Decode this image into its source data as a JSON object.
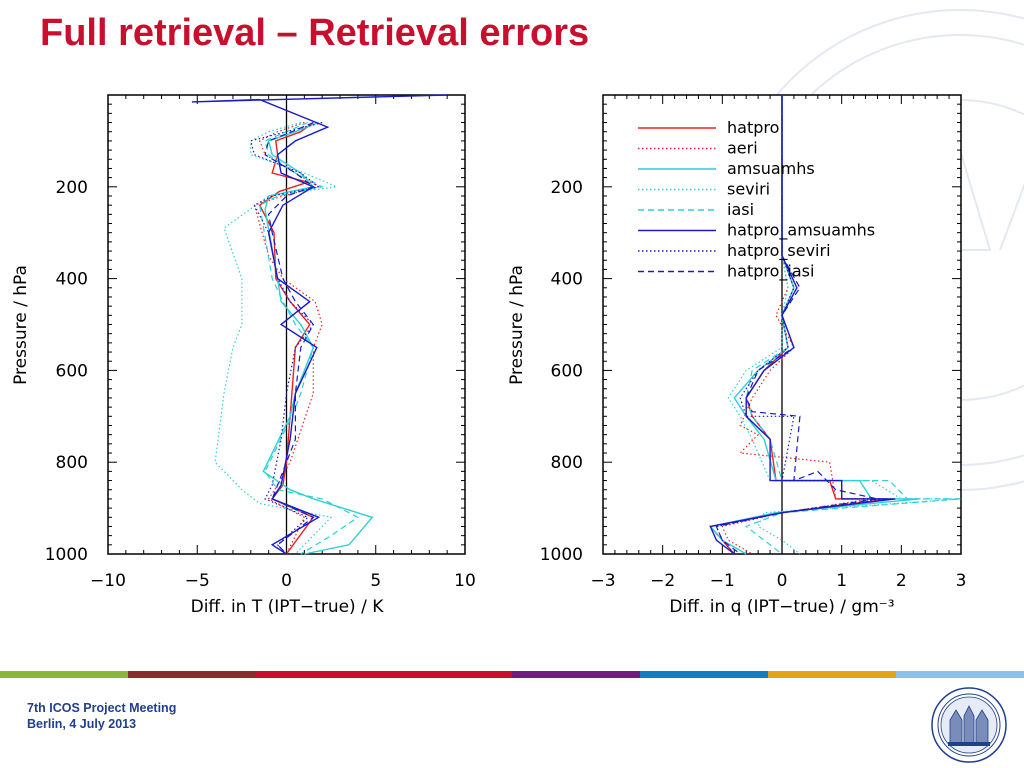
{
  "slide": {
    "title": "Full retrieval – Retrieval errors",
    "footer_line1": "7th ICOS Project Meeting",
    "footer_line2": "Berlin, 4 July 2013",
    "title_color": "#c8102e",
    "footer_color": "#1f3f8f",
    "color_bar": [
      "#8cb83a",
      "#8b2d2a",
      "#c8102e",
      "#c8102e",
      "#6d1f7a",
      "#0e7fc4",
      "#e5a31c",
      "#8fc1e6"
    ],
    "seal_icon": "university-seal-icon",
    "watermark_icon": "university-seal-watermark-icon"
  },
  "legend": [
    {
      "label": "hatpro",
      "color": "#e8231f",
      "dash": "solid"
    },
    {
      "label": "aeri",
      "color": "#e8231f",
      "dash": "dotted"
    },
    {
      "label": "amsuamhs",
      "color": "#2ecfd6",
      "dash": "solid"
    },
    {
      "label": "seviri",
      "color": "#2ecfd6",
      "dash": "dotted"
    },
    {
      "label": "iasi",
      "color": "#2ecfd6",
      "dash": "dashed"
    },
    {
      "label": "hatpro_amsuamhs",
      "color": "#1a1ac8",
      "dash": "solid"
    },
    {
      "label": "hatpro_seviri",
      "color": "#1a1ac8",
      "dash": "dotted"
    },
    {
      "label": "hatpro_iasi",
      "color": "#1a1ac8",
      "dash": "dashed"
    }
  ],
  "chart_data": [
    {
      "type": "line",
      "xlabel": "Diff. in T (IPT−true) / K",
      "ylabel": "Pressure / hPa",
      "xlim": [
        -10,
        10
      ],
      "ylim": [
        1000,
        0
      ],
      "xticks": [
        -10,
        -5,
        0,
        5,
        10
      ],
      "xtick_labels": [
        "−10",
        "−5",
        "0",
        "5",
        "10"
      ],
      "yticks": [
        200,
        400,
        600,
        800,
        1000
      ],
      "ytick_labels": [
        "200",
        "400",
        "600",
        "800",
        "1000"
      ],
      "legend": "none",
      "series": [
        {
          "name": "hatpro",
          "x": [
            1.5,
            0.8,
            -0.6,
            -0.5,
            -0.8,
            1.2,
            -0.4,
            -1.5,
            -0.7,
            -0.6,
            0.2,
            1.3,
            0.5,
            0.3,
            0.0,
            -0.2,
            -0.8,
            1.5,
            0.0
          ],
          "y": [
            60,
            80,
            100,
            130,
            170,
            190,
            210,
            240,
            300,
            400,
            450,
            500,
            550,
            650,
            800,
            850,
            880,
            920,
            1000
          ]
        },
        {
          "name": "aeri",
          "x": [
            1.0,
            -0.5,
            -1.5,
            -1.2,
            0.5,
            1.8,
            -0.2,
            -1.8,
            -1.0,
            -0.2,
            1.6,
            2.0,
            1.5,
            1.5,
            0.2,
            -0.5,
            -1.0,
            1.0,
            0.0
          ],
          "y": [
            60,
            80,
            100,
            130,
            170,
            200,
            220,
            240,
            350,
            400,
            450,
            500,
            550,
            650,
            800,
            850,
            880,
            920,
            1000
          ]
        },
        {
          "name": "amsuamhs",
          "x": [
            1.8,
            0.5,
            -1.0,
            -0.8,
            0.8,
            1.5,
            -1.0,
            -1.2,
            -0.5,
            -0.3,
            0.8,
            1.5,
            0.5,
            0.2,
            -1.3,
            0.2,
            1.5,
            4.8,
            3.5,
            1.0
          ],
          "y": [
            60,
            80,
            100,
            130,
            170,
            200,
            220,
            250,
            400,
            450,
            500,
            550,
            650,
            700,
            820,
            860,
            880,
            920,
            980,
            1000
          ]
        },
        {
          "name": "seviri",
          "x": [
            0.8,
            -1.0,
            -2.0,
            -2.0,
            1.0,
            2.8,
            -1.0,
            -3.5,
            -2.5,
            -2.5,
            -2.5,
            -3.0,
            -3.5,
            -4.0,
            -2.5,
            -1.5,
            2.5,
            0.5
          ],
          "y": [
            60,
            80,
            100,
            130,
            170,
            200,
            220,
            290,
            400,
            450,
            500,
            550,
            650,
            800,
            860,
            890,
            920,
            1000
          ]
        },
        {
          "name": "iasi",
          "x": [
            1.2,
            0.0,
            -1.2,
            -1.0,
            0.5,
            2.0,
            -0.5,
            -1.5,
            -0.8,
            -0.2,
            0.5,
            1.5,
            0.8,
            0.3,
            -1.2,
            -0.5,
            2.0,
            4.0,
            2.5,
            0.8
          ],
          "y": [
            60,
            80,
            100,
            130,
            170,
            200,
            220,
            240,
            400,
            450,
            500,
            550,
            650,
            700,
            820,
            860,
            880,
            920,
            960,
            1000
          ]
        },
        {
          "name": "hatpro_amsuamhs",
          "x": [
            9.0,
            -5.3,
            -1.5,
            2.3,
            0.5,
            -0.5,
            -0.3,
            1.5,
            -0.2,
            -1.0,
            -0.5,
            1.3,
            -0.3,
            1.7,
            0.5,
            0.2,
            -0.3,
            -0.8,
            1.8,
            -0.8,
            0.0
          ],
          "y": [
            0,
            15,
            10,
            70,
            100,
            130,
            170,
            200,
            240,
            300,
            400,
            450,
            500,
            550,
            650,
            750,
            850,
            880,
            920,
            980,
            1000
          ]
        },
        {
          "name": "hatpro_seviri",
          "x": [
            2.0,
            0.0,
            -2.0,
            -1.8,
            0.8,
            1.8,
            -0.8,
            -1.8,
            -1.0,
            -0.5,
            0.2,
            1.5,
            0.5,
            0.0,
            -0.3,
            -0.8,
            -1.2,
            1.2,
            -0.5,
            0.0
          ],
          "y": [
            60,
            80,
            100,
            130,
            170,
            200,
            220,
            240,
            300,
            400,
            450,
            500,
            550,
            650,
            750,
            850,
            880,
            920,
            980,
            1000
          ]
        },
        {
          "name": "hatpro_iasi",
          "x": [
            1.5,
            0.3,
            -1.0,
            -1.2,
            0.5,
            1.5,
            0.0,
            -1.0,
            -0.8,
            -0.2,
            0.5,
            1.5,
            0.8,
            0.5,
            0.5,
            -0.5,
            -0.8,
            1.5,
            -0.5,
            0.0
          ],
          "y": [
            60,
            80,
            100,
            130,
            170,
            200,
            220,
            260,
            300,
            400,
            450,
            500,
            550,
            650,
            750,
            850,
            880,
            920,
            980,
            1000
          ]
        }
      ]
    },
    {
      "type": "line",
      "xlabel": "Diff. in q (IPT−true) / gm⁻³",
      "ylabel": "Pressure / hPa",
      "xlim": [
        -3,
        3
      ],
      "ylim": [
        1000,
        0
      ],
      "xticks": [
        -3,
        -2,
        -1,
        0,
        1,
        2,
        3
      ],
      "xtick_labels": [
        "−3",
        "−2",
        "−1",
        "0",
        "1",
        "2",
        "3"
      ],
      "yticks": [
        200,
        400,
        600,
        800,
        1000
      ],
      "ytick_labels": [
        "200",
        "400",
        "600",
        "800",
        "1000"
      ],
      "legend": "top-left",
      "series": [
        {
          "name": "hatpro",
          "x": [
            0.0,
            0.0,
            0.0,
            0.2,
            0.0,
            0.1,
            -0.3,
            -0.6,
            -0.5,
            -0.2,
            -0.1,
            0.8,
            0.9,
            1.8,
            0.0,
            -1.2,
            -1.0,
            -0.8
          ],
          "y": [
            0,
            150,
            350,
            420,
            480,
            550,
            600,
            660,
            700,
            750,
            840,
            840,
            880,
            880,
            910,
            940,
            970,
            1000
          ]
        },
        {
          "name": "aeri",
          "x": [
            0.0,
            0.0,
            0.0,
            0.1,
            -0.1,
            0.2,
            -0.2,
            -0.5,
            -0.7,
            -0.4,
            -0.7,
            0.8,
            0.9,
            1.5,
            0.0,
            -1.0,
            -0.9,
            -0.5
          ],
          "y": [
            0,
            150,
            350,
            420,
            480,
            550,
            600,
            660,
            720,
            740,
            780,
            800,
            880,
            880,
            910,
            940,
            970,
            1000
          ]
        },
        {
          "name": "amsuamhs",
          "x": [
            0.0,
            0.0,
            0.0,
            0.2,
            0.0,
            0.1,
            -0.4,
            -0.8,
            -0.6,
            -0.3,
            -0.1,
            1.3,
            1.5,
            2.3,
            -0.1,
            -1.2,
            -1.0,
            -0.6
          ],
          "y": [
            0,
            150,
            350,
            420,
            480,
            550,
            600,
            660,
            700,
            750,
            840,
            840,
            880,
            880,
            910,
            940,
            970,
            1000
          ]
        },
        {
          "name": "seviri",
          "x": [
            0.0,
            0.0,
            0.0,
            0.1,
            0.0,
            0.0,
            -0.6,
            -0.9,
            -0.7,
            -0.5,
            -0.2,
            1.5,
            2.0,
            3.0,
            -0.3,
            -0.4,
            0.0,
            0.3
          ],
          "y": [
            0,
            150,
            350,
            420,
            480,
            550,
            600,
            660,
            700,
            750,
            840,
            840,
            880,
            880,
            910,
            940,
            970,
            1000
          ]
        },
        {
          "name": "iasi",
          "x": [
            0.0,
            0.0,
            0.0,
            0.2,
            0.0,
            0.1,
            -0.5,
            -0.6,
            -0.5,
            -0.2,
            0.0,
            1.8,
            2.1,
            3.0,
            0.0,
            -0.6,
            -0.3,
            0.0
          ],
          "y": [
            0,
            150,
            350,
            420,
            480,
            550,
            600,
            660,
            700,
            750,
            840,
            840,
            880,
            880,
            910,
            940,
            970,
            1000
          ]
        },
        {
          "name": "hatpro_amsuamhs",
          "x": [
            0.0,
            0.0,
            0.0,
            0.25,
            0.0,
            0.2,
            -0.3,
            -0.6,
            -0.6,
            -0.2,
            -0.2,
            1.0,
            1.0,
            1.9,
            0.0,
            -1.2,
            -1.1,
            -0.8
          ],
          "y": [
            0,
            150,
            350,
            420,
            480,
            550,
            600,
            660,
            700,
            750,
            840,
            840,
            880,
            880,
            910,
            940,
            970,
            1000
          ]
        },
        {
          "name": "hatpro_seviri",
          "x": [
            0.0,
            0.0,
            0.0,
            0.2,
            0.0,
            0.1,
            -0.4,
            -0.7,
            -0.6,
            0.2,
            0.0,
            1.0,
            1.0,
            1.7,
            0.0,
            -1.1,
            -1.0,
            -0.8
          ],
          "y": [
            0,
            150,
            350,
            420,
            480,
            550,
            600,
            660,
            700,
            700,
            840,
            840,
            880,
            880,
            910,
            940,
            970,
            1000
          ]
        },
        {
          "name": "hatpro_iasi",
          "x": [
            0.0,
            0.0,
            0.0,
            0.3,
            0.0,
            0.2,
            -0.4,
            -0.6,
            -0.5,
            0.3,
            0.2,
            0.6,
            0.9,
            1.6,
            0.0,
            -1.1,
            -1.0,
            -0.7
          ],
          "y": [
            0,
            150,
            350,
            420,
            480,
            550,
            600,
            660,
            690,
            700,
            840,
            820,
            860,
            880,
            910,
            940,
            970,
            1000
          ]
        }
      ]
    }
  ]
}
